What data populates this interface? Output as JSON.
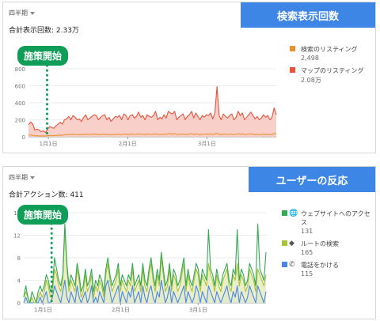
{
  "panel1": {
    "period": "四半期",
    "total": "合計表示回数: 2.33万",
    "header": "検索表示回数",
    "badge": "施策開始",
    "legend": [
      {
        "label": "検索のリスティング",
        "value": "2,498",
        "color": "#e8912d"
      },
      {
        "label": "マップのリスティング",
        "value": "2.08万",
        "color": "#e8523b"
      }
    ],
    "chart_data": {
      "type": "area",
      "yticks": [
        "0",
        "200",
        "400",
        "600",
        "800"
      ],
      "ylim": [
        0,
        800
      ],
      "xticks": [
        "1月1日",
        "2月1日",
        "3月1日"
      ],
      "series": [
        {
          "name": "マップのリスティング",
          "color": "#e8523b",
          "fill": "#f8c7c1",
          "values": [
            140,
            175,
            150,
            80,
            90,
            80,
            60,
            70,
            50,
            90,
            120,
            110,
            100,
            130,
            150,
            170,
            150,
            200,
            210,
            240,
            200,
            250,
            230,
            200,
            210,
            180,
            230,
            260,
            200,
            220,
            240,
            260,
            250,
            200,
            230,
            250,
            260,
            200,
            230,
            180,
            210,
            240,
            230,
            250,
            200,
            270,
            250,
            200,
            250,
            260,
            220,
            240,
            290,
            230,
            250,
            200,
            260,
            240,
            230,
            250,
            300,
            200,
            230,
            210,
            260,
            220,
            300,
            280,
            270,
            300,
            200,
            230,
            250,
            270,
            200,
            240,
            260,
            300,
            220,
            280,
            240,
            200,
            250,
            230,
            260,
            250,
            280,
            210,
            280,
            590,
            250,
            200,
            270,
            240,
            220,
            250,
            270,
            200,
            230,
            300,
            250,
            280,
            200,
            230,
            260,
            290,
            250,
            210,
            240,
            200,
            220,
            260,
            230,
            250,
            200,
            230,
            340,
            260
          ]
        },
        {
          "name": "検索のリスティング",
          "color": "#e8912d",
          "values": [
            20,
            20,
            18,
            12,
            12,
            10,
            10,
            10,
            8,
            12,
            15,
            14,
            14,
            16,
            18,
            20,
            18,
            24,
            26,
            28,
            26,
            30,
            28,
            24,
            26,
            24,
            28,
            30,
            26,
            28,
            30,
            32,
            30,
            26,
            28,
            30,
            32,
            26,
            28,
            24,
            26,
            30,
            28,
            30,
            26,
            32,
            30,
            26,
            30,
            32,
            28,
            30,
            34,
            28,
            30,
            26,
            32,
            30,
            28,
            30,
            36,
            26,
            28,
            26,
            32,
            28,
            36,
            34,
            32,
            36,
            26,
            28,
            30,
            32,
            26,
            30,
            32,
            36,
            28,
            34,
            30,
            26,
            30,
            28,
            32,
            30,
            34,
            26,
            34,
            40,
            30,
            26,
            32,
            30,
            28,
            30,
            32,
            26,
            28,
            36,
            30,
            34,
            26,
            28,
            32,
            34,
            30,
            26,
            30,
            26,
            28,
            32,
            28,
            30,
            26,
            28,
            40,
            30
          ]
        }
      ]
    }
  },
  "panel2": {
    "period": "四半期",
    "total": "合計アクション数: 411",
    "header": "ユーザーの反応",
    "badge": "施策開始",
    "legend": [
      {
        "label": "ウェブサイトへのアクセス",
        "value": "131",
        "color": "#34a853",
        "icon": "globe-icon",
        "glyph": "🌐"
      },
      {
        "label": "ルートの検索",
        "value": "165",
        "color": "#a8c23a",
        "icon": "directions-icon",
        "glyph": "◆"
      },
      {
        "label": "電話をかける",
        "value": "115",
        "color": "#4a86e8",
        "icon": "phone-icon",
        "glyph": "✆"
      }
    ],
    "chart_data": {
      "type": "area",
      "yticks": [
        "0",
        "4",
        "8",
        "12",
        "16"
      ],
      "ylim": [
        0,
        16
      ],
      "xticks": [
        "1月1日",
        "2月1日",
        "3月1日"
      ],
      "series": [
        {
          "name": "電話をかける",
          "color": "#4a86e8",
          "fill": "#c9daf8",
          "values": [
            0,
            1,
            0,
            0,
            0,
            0,
            0,
            0,
            1,
            0,
            1,
            2,
            0,
            0,
            1,
            3,
            2,
            1,
            0,
            2,
            4,
            1,
            0,
            2,
            1,
            0,
            3,
            1,
            0,
            1,
            2,
            0,
            1,
            3,
            0,
            1,
            0,
            2,
            1,
            0,
            3,
            4,
            2,
            0,
            1,
            2,
            3,
            0,
            2,
            1,
            0,
            2,
            1,
            3,
            0,
            1,
            2,
            0,
            3,
            1,
            0,
            2,
            3,
            1,
            0,
            2,
            1,
            4,
            2,
            0,
            1,
            3,
            0,
            2,
            1,
            0,
            1,
            2,
            3,
            0,
            2,
            1,
            0,
            1,
            3,
            2,
            0,
            2,
            1,
            0,
            3,
            2,
            1,
            0,
            2,
            1,
            0,
            1,
            2,
            3,
            1,
            0,
            2,
            1,
            3,
            0,
            2,
            1,
            0,
            1,
            3,
            2,
            1,
            0,
            3,
            2,
            1,
            0,
            2
          ]
        },
        {
          "name": "ルートの検索",
          "color": "#a8c23a",
          "fill": "#e7ecbf",
          "values": [
            1,
            2,
            1,
            0,
            1,
            0,
            0,
            1,
            2,
            1,
            2,
            4,
            3,
            1,
            2,
            6,
            5,
            3,
            2,
            4,
            13,
            6,
            2,
            4,
            3,
            2,
            6,
            4,
            1,
            2,
            5,
            2,
            3,
            5,
            1,
            3,
            2,
            4,
            3,
            1,
            5,
            7,
            4,
            2,
            3,
            4,
            6,
            2,
            4,
            3,
            2,
            4,
            3,
            6,
            2,
            3,
            4,
            2,
            6,
            3,
            2,
            5,
            7,
            4,
            2,
            5,
            3,
            8,
            5,
            2,
            3,
            6,
            2,
            5,
            4,
            2,
            3,
            5,
            7,
            2,
            5,
            3,
            2,
            4,
            6,
            5,
            2,
            5,
            4,
            3,
            7,
            5,
            4,
            2,
            5,
            3,
            2,
            4,
            5,
            6,
            3,
            2,
            5,
            4,
            7,
            3,
            5,
            4,
            2,
            3,
            6,
            5,
            4,
            2,
            6,
            5,
            4,
            3,
            5
          ]
        },
        {
          "name": "ウェブサイトへのアクセス",
          "color": "#34a853",
          "values": [
            1,
            3,
            1,
            0,
            2,
            1,
            0,
            2,
            3,
            2,
            3,
            5,
            4,
            2,
            3,
            8,
            6,
            4,
            3,
            5,
            14,
            7,
            3,
            5,
            4,
            3,
            7,
            5,
            2,
            3,
            6,
            3,
            4,
            6,
            2,
            4,
            3,
            5,
            4,
            2,
            6,
            8,
            5,
            3,
            4,
            5,
            7,
            3,
            5,
            4,
            3,
            5,
            4,
            7,
            3,
            4,
            5,
            3,
            7,
            4,
            3,
            6,
            8,
            5,
            3,
            6,
            4,
            9,
            6,
            3,
            4,
            7,
            3,
            6,
            5,
            3,
            4,
            6,
            8,
            3,
            6,
            4,
            3,
            5,
            7,
            6,
            3,
            6,
            5,
            4,
            13,
            6,
            5,
            3,
            6,
            4,
            3,
            5,
            6,
            7,
            4,
            3,
            6,
            5,
            13,
            4,
            6,
            5,
            3,
            4,
            7,
            6,
            5,
            3,
            14,
            6,
            5,
            4,
            9
          ]
        }
      ]
    }
  }
}
